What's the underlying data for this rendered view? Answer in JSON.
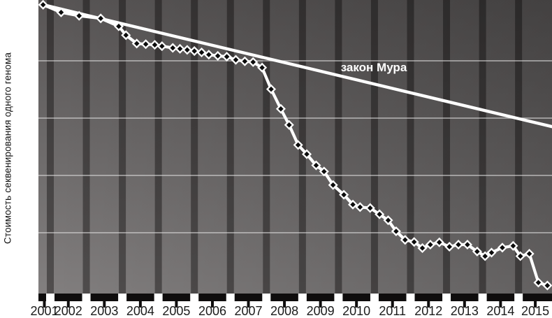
{
  "figure": {
    "background": "#ffffff"
  },
  "chart_data": {
    "type": "line",
    "title": "",
    "xlabel": "",
    "ylabel": "Стоимость секвенирования одного генома",
    "y_scale": "log",
    "x_range_years": [
      2001.67,
      2015.93
    ],
    "y_range_usd": [
      870,
      115000000
    ],
    "grid": "horizontal-only",
    "gridlines_usd": [
      10000000,
      1000000,
      100000,
      10000
    ],
    "x_tick_labels": [
      "2001",
      "2002",
      "2003",
      "2004",
      "2005",
      "2006",
      "2007",
      "2008",
      "2009",
      "2010",
      "2011",
      "2012",
      "2013",
      "2014",
      "2015"
    ],
    "annotation": {
      "text": "закон Мура",
      "x_year": 2011.0,
      "y_usd": 8000000
    },
    "series": [
      {
        "name": "стоимость секвенирования одного генома",
        "marker": "diamond",
        "points": [
          [
            2001.8,
            95000000
          ],
          [
            2002.3,
            70000000
          ],
          [
            2002.8,
            61000000
          ],
          [
            2003.4,
            55000000
          ],
          [
            2003.9,
            40000000
          ],
          [
            2004.1,
            28000000
          ],
          [
            2004.4,
            20000000
          ],
          [
            2004.65,
            19500000
          ],
          [
            2004.9,
            19000000
          ],
          [
            2005.1,
            18000000
          ],
          [
            2005.4,
            16800000
          ],
          [
            2005.6,
            16200000
          ],
          [
            2005.8,
            15500000
          ],
          [
            2006.0,
            14800000
          ],
          [
            2006.2,
            14000000
          ],
          [
            2006.4,
            12800000
          ],
          [
            2006.65,
            12200000
          ],
          [
            2006.9,
            11800000
          ],
          [
            2007.15,
            10400000
          ],
          [
            2007.4,
            9800000
          ],
          [
            2007.63,
            9500000
          ],
          [
            2007.88,
            7600000
          ],
          [
            2008.13,
            3200000
          ],
          [
            2008.4,
            1450000
          ],
          [
            2008.63,
            760000
          ],
          [
            2008.88,
            340000
          ],
          [
            2009.12,
            235000
          ],
          [
            2009.38,
            150000
          ],
          [
            2009.6,
            117000
          ],
          [
            2009.85,
            68000
          ],
          [
            2010.15,
            46000
          ],
          [
            2010.4,
            31000
          ],
          [
            2010.6,
            28000
          ],
          [
            2010.88,
            27000
          ],
          [
            2011.14,
            21000
          ],
          [
            2011.38,
            16500
          ],
          [
            2011.6,
            10600
          ],
          [
            2011.85,
            7500
          ],
          [
            2012.1,
            6900
          ],
          [
            2012.33,
            5400
          ],
          [
            2012.55,
            6200
          ],
          [
            2012.8,
            6800
          ],
          [
            2013.08,
            5700
          ],
          [
            2013.33,
            6200
          ],
          [
            2013.58,
            6200
          ],
          [
            2013.85,
            4700
          ],
          [
            2014.07,
            3900
          ],
          [
            2014.25,
            4500
          ],
          [
            2014.55,
            5500
          ],
          [
            2014.85,
            5900
          ],
          [
            2015.05,
            3900
          ],
          [
            2015.3,
            4300
          ],
          [
            2015.55,
            1350
          ],
          [
            2015.8,
            1200
          ]
        ]
      },
      {
        "name": "закон Мура",
        "marker": "none",
        "points": [
          [
            2001.8,
            95000000
          ],
          [
            2015.93,
            710000
          ]
        ]
      }
    ]
  },
  "colors": {
    "plot_top": "#585555",
    "plot_bottom": "#827f7f",
    "right_shade": "rgba(0,0,0,0.24)",
    "stripe": "rgba(12,10,10,0.42)",
    "gridline": "rgba(225,223,223,0.7)",
    "line_white": "#ffffff",
    "marker_black": "#0b0b0b",
    "axis_black": "#0f0d0d",
    "tick_label": "#1b1b1b"
  }
}
